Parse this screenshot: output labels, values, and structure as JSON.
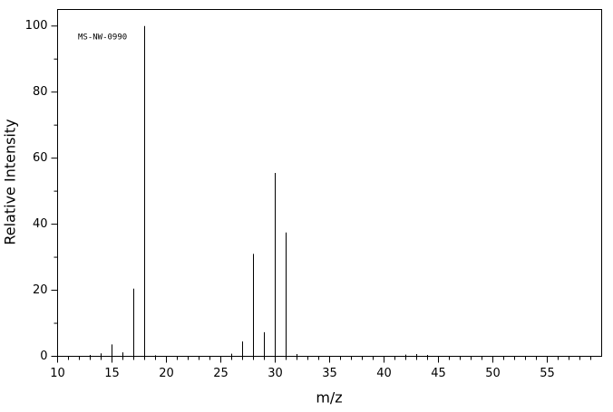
{
  "chart_data": {
    "type": "stick",
    "annotation": "MS-NW-0990",
    "xlabel": "m/z",
    "ylabel": "Relative Intensity",
    "x": [
      13,
      14,
      15,
      16,
      17,
      18,
      19,
      26,
      27,
      28,
      29,
      30,
      31,
      32,
      42,
      43,
      44
    ],
    "values": [
      0.4,
      0.9,
      3.6,
      1.2,
      20.5,
      100,
      0.3,
      0.8,
      4.5,
      31,
      7.3,
      55.5,
      37.5,
      0.7,
      0.5,
      0.7,
      0.4
    ],
    "color": "#000000",
    "xlim": [
      10,
      60
    ],
    "xticks": [
      10,
      15,
      20,
      25,
      30,
      35,
      40,
      45,
      50,
      55
    ],
    "xminor_ticks": [
      11,
      12,
      13,
      14,
      16,
      17,
      18,
      19,
      21,
      22,
      23,
      24,
      26,
      27,
      28,
      29,
      31,
      32,
      33,
      34,
      36,
      37,
      38,
      39,
      41,
      42,
      43,
      44,
      46,
      47,
      48,
      49,
      51,
      52,
      53,
      54,
      56,
      57,
      58,
      59
    ],
    "ylim": [
      0,
      105
    ],
    "yticks": [
      0,
      20,
      40,
      60,
      80,
      100
    ],
    "yminor_ticks": [
      10,
      30,
      50,
      70,
      90
    ]
  }
}
